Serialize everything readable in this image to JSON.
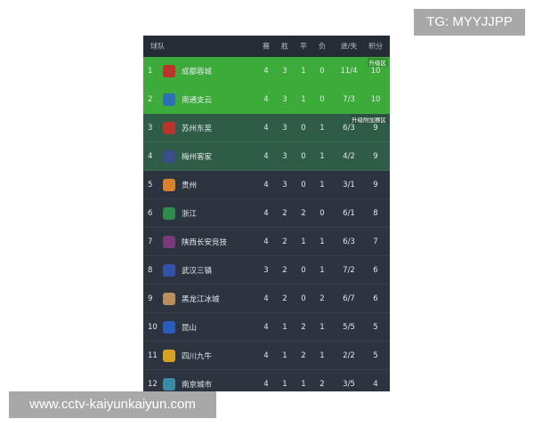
{
  "badge": "TG: MYYJJPP",
  "watermark": "www.cctv-kaiyunkaiyun.com",
  "header": {
    "team": "球队",
    "played": "赛",
    "won": "胜",
    "drawn": "平",
    "lost": "负",
    "goals": "进/失",
    "points": "积分"
  },
  "colors": {
    "promotion": "#3dab3a",
    "playoff": "#2f5c47",
    "default": "#2c3440"
  },
  "rows": [
    {
      "rank": "1",
      "team": "成都蓉城",
      "p": "4",
      "w": "3",
      "d": "1",
      "l": "0",
      "g": "11/4",
      "pts": "10",
      "zone": "promo",
      "zone_label": "升级区",
      "logo": "#c0302c"
    },
    {
      "rank": "2",
      "team": "南通支云",
      "p": "4",
      "w": "3",
      "d": "1",
      "l": "0",
      "g": "7/3",
      "pts": "10",
      "zone": "promo",
      "logo": "#2a6fb8"
    },
    {
      "rank": "3",
      "team": "苏州东吴",
      "p": "4",
      "w": "3",
      "d": "0",
      "l": "1",
      "g": "6/3",
      "pts": "9",
      "zone": "playoff",
      "zone_label": "升级附加赛区",
      "logo": "#b8352a"
    },
    {
      "rank": "4",
      "team": "梅州客家",
      "p": "4",
      "w": "3",
      "d": "0",
      "l": "1",
      "g": "4/2",
      "pts": "9",
      "zone": "playoff",
      "logo": "#3a4e8a"
    },
    {
      "rank": "5",
      "team": "贵州",
      "p": "4",
      "w": "3",
      "d": "0",
      "l": "1",
      "g": "3/1",
      "pts": "9",
      "logo": "#d9822b"
    },
    {
      "rank": "6",
      "team": "浙江",
      "p": "4",
      "w": "2",
      "d": "2",
      "l": "0",
      "g": "6/1",
      "pts": "8",
      "logo": "#2e8b4a"
    },
    {
      "rank": "7",
      "team": "陕西长安竞技",
      "p": "4",
      "w": "2",
      "d": "1",
      "l": "1",
      "g": "6/3",
      "pts": "7",
      "logo": "#7a3a7a"
    },
    {
      "rank": "8",
      "team": "武汉三镇",
      "p": "3",
      "w": "2",
      "d": "0",
      "l": "1",
      "g": "7/2",
      "pts": "6",
      "logo": "#3550a8"
    },
    {
      "rank": "9",
      "team": "黑龙江冰城",
      "p": "4",
      "w": "2",
      "d": "0",
      "l": "2",
      "g": "6/7",
      "pts": "6",
      "logo": "#b89060"
    },
    {
      "rank": "10",
      "team": "昆山",
      "p": "4",
      "w": "1",
      "d": "2",
      "l": "1",
      "g": "5/5",
      "pts": "5",
      "logo": "#2a5cc0"
    },
    {
      "rank": "11",
      "team": "四川九牛",
      "p": "4",
      "w": "1",
      "d": "2",
      "l": "1",
      "g": "2/2",
      "pts": "5",
      "logo": "#d8a020"
    },
    {
      "rank": "12",
      "team": "南京城市",
      "p": "4",
      "w": "1",
      "d": "1",
      "l": "2",
      "g": "3/5",
      "pts": "4",
      "logo": "#3a8aa8"
    }
  ]
}
